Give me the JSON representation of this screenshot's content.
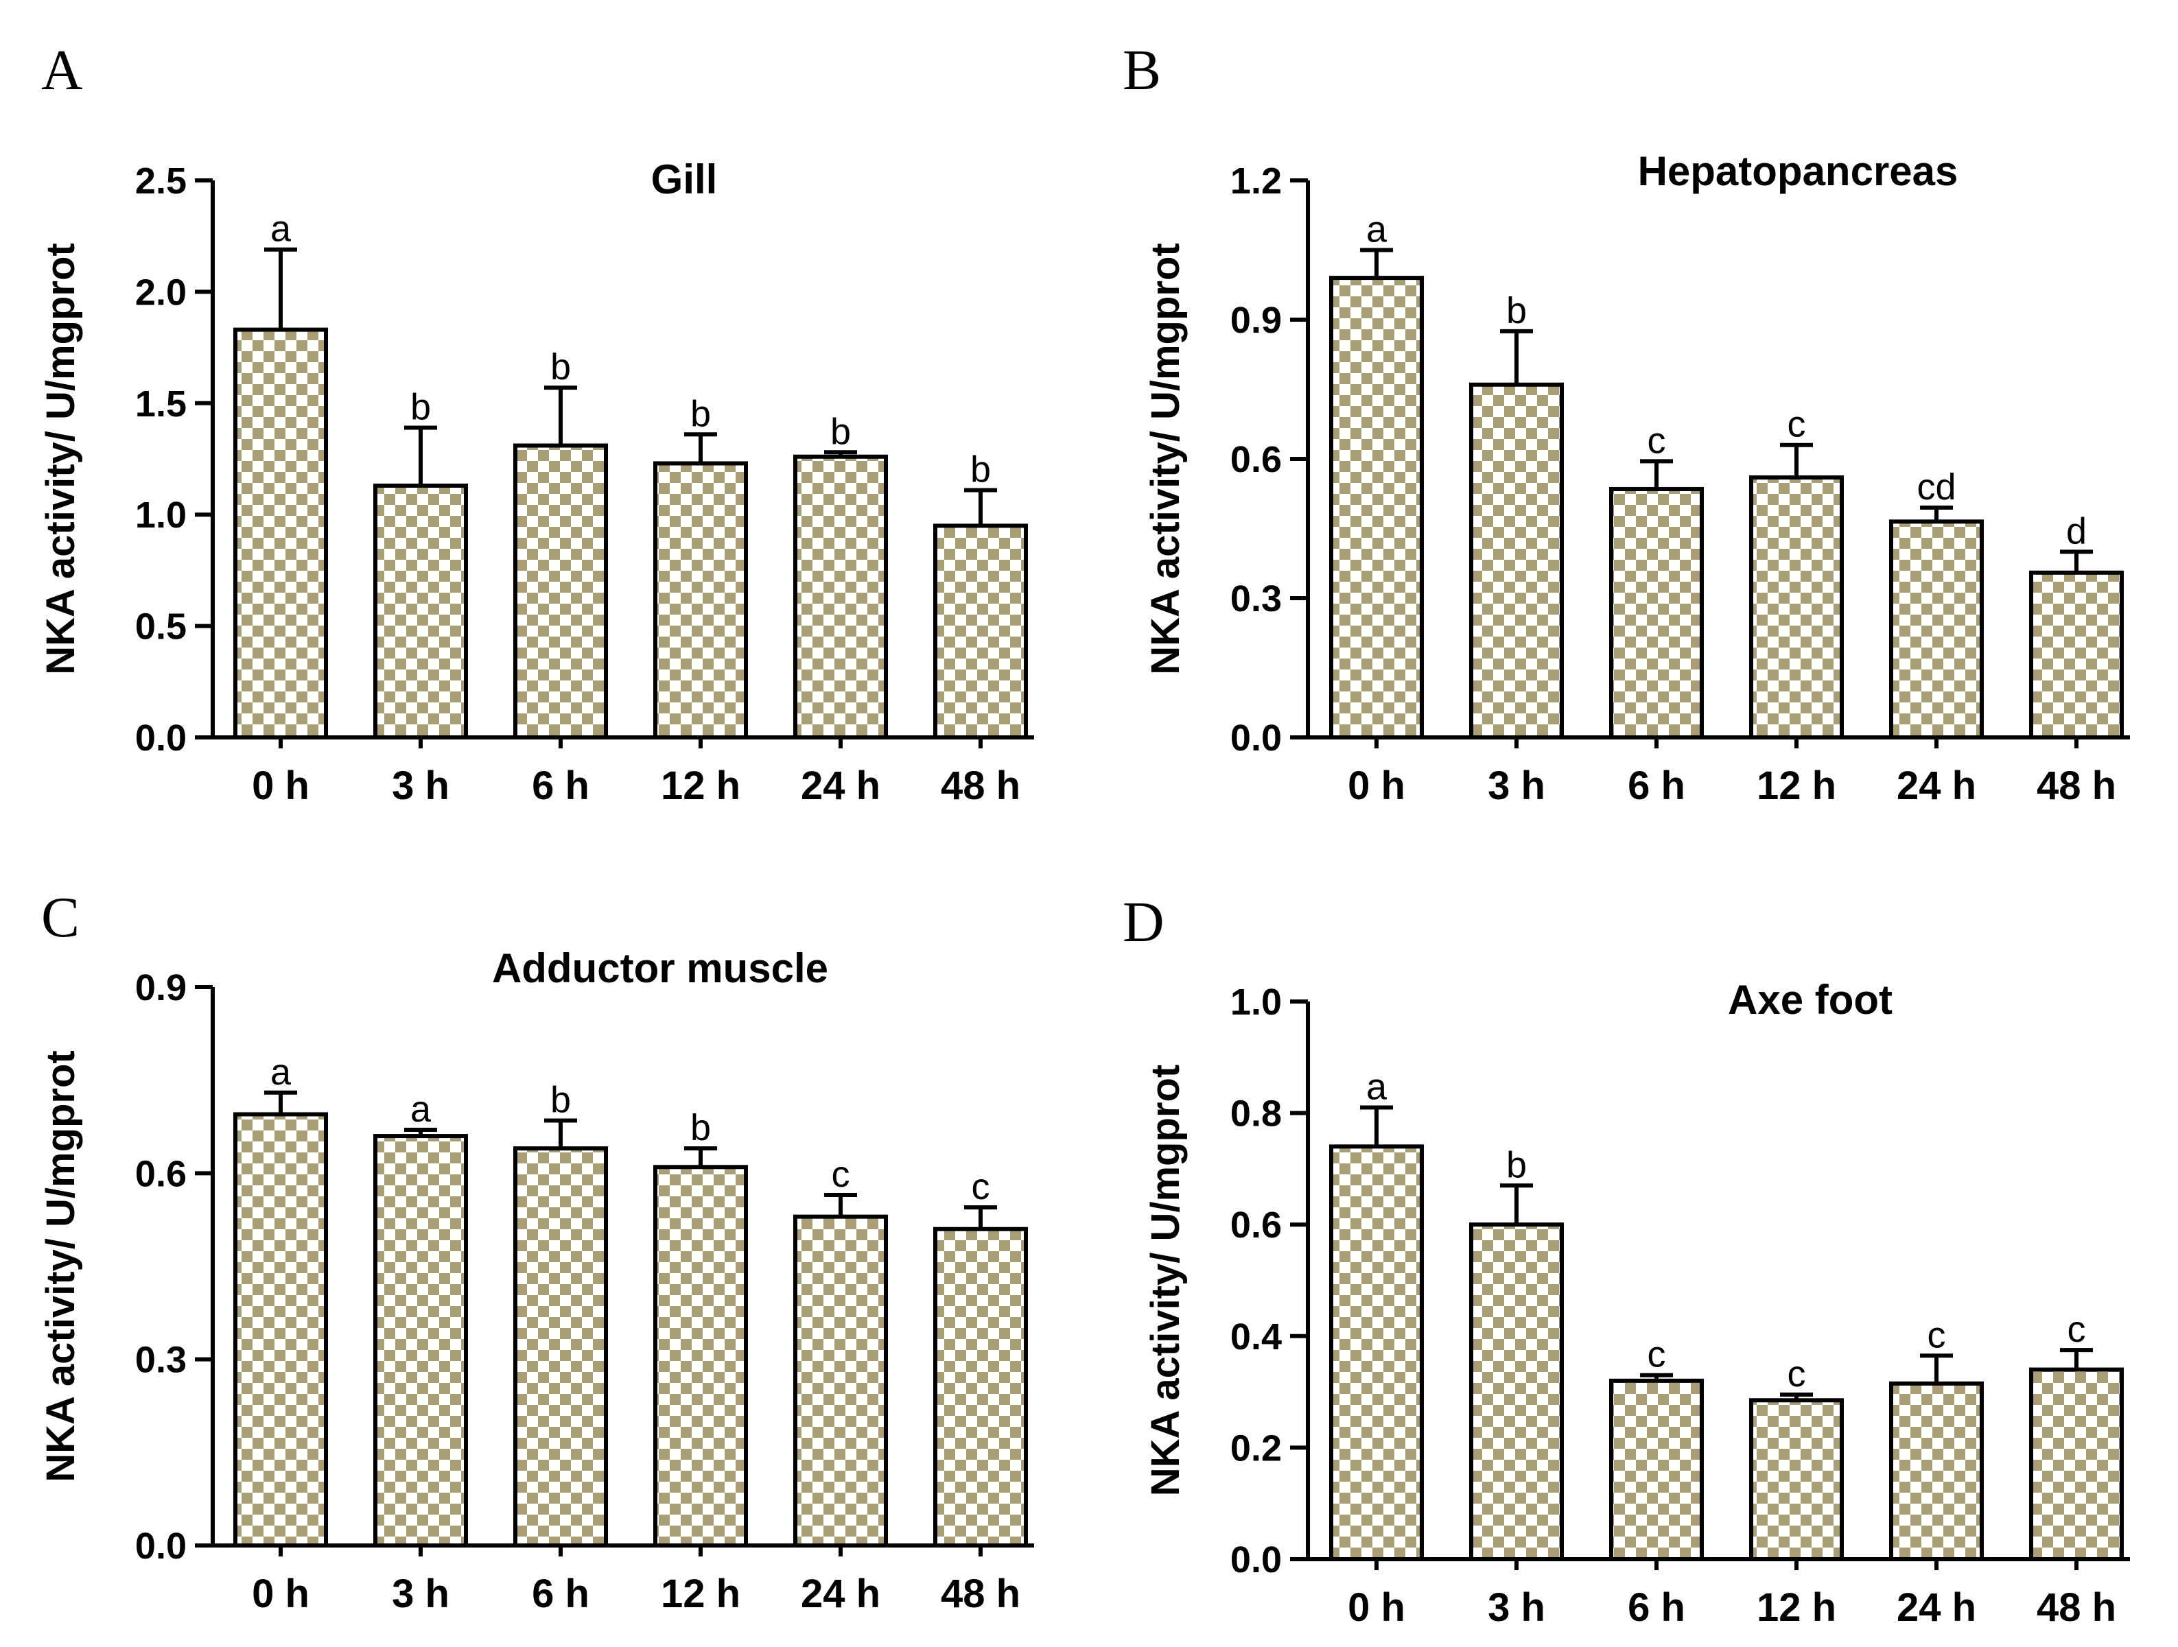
{
  "figure": {
    "colors": {
      "bar_light": "#ffffff",
      "bar_dark": "#a99f72",
      "axis": "#000000"
    }
  },
  "chart_data": [
    {
      "panel": "A",
      "type": "bar",
      "title": "Gill",
      "ylabel": "NKA activity/ U/mgprot",
      "xlabel": "",
      "categories": [
        "0 h",
        "3 h",
        "6 h",
        "12 h",
        "24 h",
        "48 h"
      ],
      "values": [
        1.83,
        1.13,
        1.31,
        1.23,
        1.26,
        0.95
      ],
      "errors": [
        0.36,
        0.26,
        0.26,
        0.13,
        0.02,
        0.16
      ],
      "significance": [
        "a",
        "b",
        "b",
        "b",
        "b",
        "b"
      ],
      "ylim": [
        0,
        2.5
      ],
      "yticks": [
        "0.0",
        "0.5",
        "1.0",
        "1.5",
        "2.0",
        "2.5"
      ]
    },
    {
      "panel": "B",
      "type": "bar",
      "title": "Hepatopancreas",
      "ylabel": "NKA activity/ U/mgprot",
      "xlabel": "",
      "categories": [
        "0 h",
        "3 h",
        "6 h",
        "12 h",
        "24 h",
        "48 h"
      ],
      "values": [
        0.99,
        0.76,
        0.535,
        0.56,
        0.465,
        0.355
      ],
      "errors": [
        0.06,
        0.115,
        0.06,
        0.07,
        0.03,
        0.045
      ],
      "significance": [
        "a",
        "b",
        "c",
        "c",
        "cd",
        "d"
      ],
      "ylim": [
        0,
        1.2
      ],
      "yticks": [
        "0.0",
        "0.3",
        "0.6",
        "0.9",
        "1.2"
      ]
    },
    {
      "panel": "C",
      "type": "bar",
      "title": "Adductor muscle",
      "ylabel": "NKA activity/ U/mgprot",
      "xlabel": "",
      "categories": [
        "0 h",
        "3 h",
        "6 h",
        "12 h",
        "24 h",
        "48 h"
      ],
      "values": [
        0.695,
        0.66,
        0.64,
        0.61,
        0.53,
        0.51
      ],
      "errors": [
        0.035,
        0.01,
        0.045,
        0.03,
        0.035,
        0.035
      ],
      "significance": [
        "a",
        "a",
        "b",
        "b",
        "c",
        "c"
      ],
      "ylim": [
        0,
        0.9
      ],
      "yticks": [
        "0.0",
        "0.3",
        "0.6",
        "0.9"
      ]
    },
    {
      "panel": "D",
      "type": "bar",
      "title": "Axe foot",
      "ylabel": "NKA activity/ U/mgprot",
      "xlabel": "",
      "categories": [
        "0 h",
        "3 h",
        "6 h",
        "12 h",
        "24 h",
        "48 h"
      ],
      "values": [
        0.74,
        0.6,
        0.32,
        0.285,
        0.315,
        0.34
      ],
      "errors": [
        0.07,
        0.07,
        0.01,
        0.01,
        0.05,
        0.035
      ],
      "significance": [
        "a",
        "b",
        "c",
        "c",
        "c",
        "c"
      ],
      "ylim": [
        0,
        1.0
      ],
      "yticks": [
        "0.0",
        "0.2",
        "0.4",
        "0.6",
        "0.8",
        "1.0"
      ]
    }
  ]
}
